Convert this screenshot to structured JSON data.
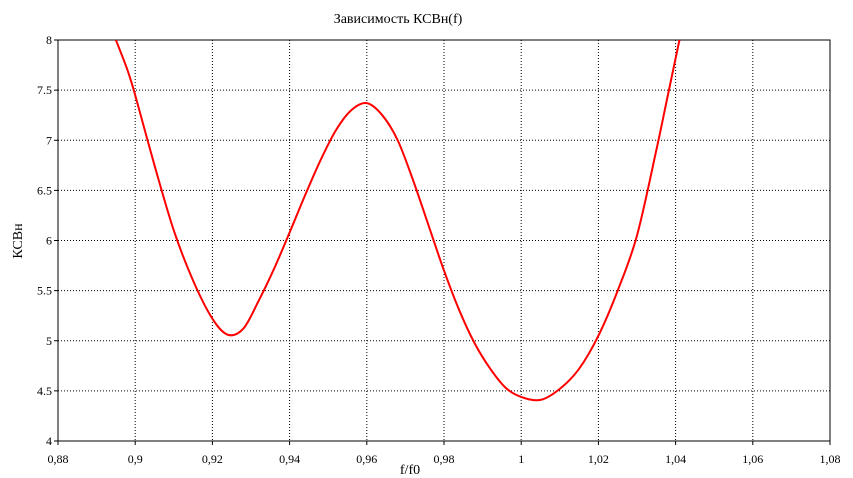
{
  "chart_data": {
    "type": "line",
    "title": "Зависимость КСВн(f)",
    "xlabel": "f/f0",
    "ylabel": "КСВн",
    "xlim": [
      0.88,
      1.08
    ],
    "ylim": [
      4,
      8
    ],
    "x_ticks": [
      0.88,
      0.9,
      0.92,
      0.94,
      0.96,
      0.98,
      1,
      1.02,
      1.04,
      1.06,
      1.08
    ],
    "x_tick_labels": [
      "0,88",
      "0,9",
      "0,92",
      "0,94",
      "0,96",
      "0,98",
      "1",
      "1,02",
      "1,04",
      "1,06",
      "1,08"
    ],
    "y_ticks": [
      4,
      4.5,
      5,
      5.5,
      6,
      6.5,
      7,
      7.5,
      8
    ],
    "y_tick_labels": [
      "4",
      "4.5",
      "5",
      "5.5",
      "6",
      "6.5",
      "7",
      "7.5",
      "8"
    ],
    "grid": true,
    "legend": "none",
    "series": [
      {
        "color": "#ff0000",
        "x": [
          0.895,
          0.898,
          0.9,
          0.905,
          0.91,
          0.915,
          0.92,
          0.924,
          0.928,
          0.932,
          0.936,
          0.94,
          0.944,
          0.948,
          0.952,
          0.956,
          0.96,
          0.964,
          0.968,
          0.972,
          0.976,
          0.98,
          0.984,
          0.988,
          0.992,
          0.996,
          1.0,
          1.005,
          1.01,
          1.015,
          1.02,
          1.025,
          1.03,
          1.035,
          1.038,
          1.041
        ],
        "y": [
          8.0,
          7.7,
          7.45,
          6.75,
          6.1,
          5.6,
          5.22,
          5.06,
          5.12,
          5.4,
          5.72,
          6.08,
          6.45,
          6.8,
          7.1,
          7.3,
          7.37,
          7.25,
          7.0,
          6.6,
          6.15,
          5.7,
          5.3,
          4.97,
          4.72,
          4.53,
          4.44,
          4.41,
          4.52,
          4.72,
          5.05,
          5.5,
          6.05,
          6.9,
          7.45,
          8.0
        ]
      }
    ]
  }
}
